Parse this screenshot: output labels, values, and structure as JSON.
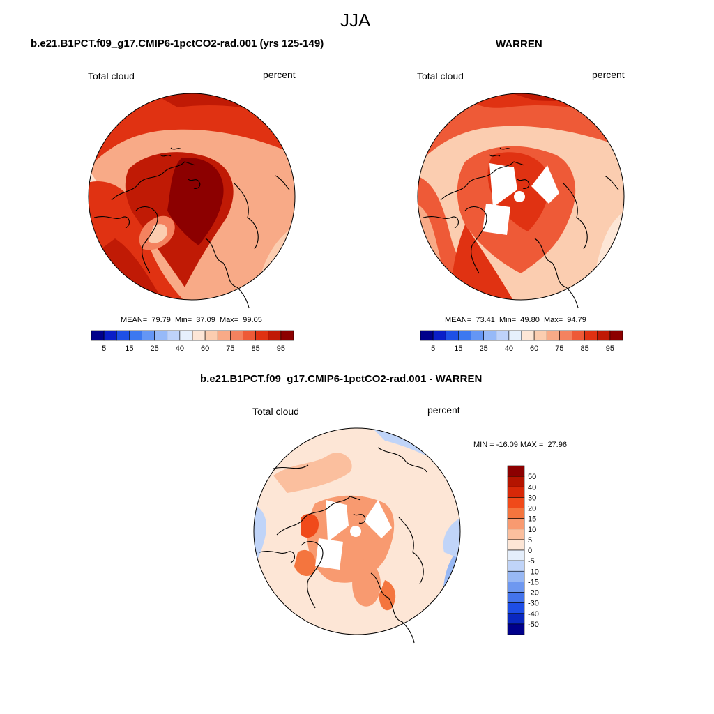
{
  "figure": {
    "title": "JJA"
  },
  "panels": [
    {
      "title": "b.e21.B1PCT.f09_g17.CMIP6-1pctCO2-rad.001 (yrs 125-149)",
      "left_label": "Total cloud",
      "right_label": "percent",
      "stats": {
        "mean": "79.79",
        "min": "37.09",
        "max": "99.05"
      }
    },
    {
      "title": "WARREN",
      "left_label": "Total cloud",
      "right_label": "percent",
      "stats": {
        "mean": "73.41",
        "min": "49.80",
        "max": "94.79"
      }
    },
    {
      "title": "b.e21.B1PCT.f09_g17.CMIP6-1pctCO2-rad.001 - WARREN",
      "left_label": "Total cloud",
      "right_label": "percent",
      "stats": {
        "min": "-16.09",
        "max": "27.96"
      }
    }
  ],
  "stat_labels": {
    "mean": "MEAN=",
    "min": "Min=",
    "max": "Max=",
    "min_diff": "MIN =",
    "max_diff": "MAX ="
  },
  "chart_data": [
    {
      "type": "heatmap",
      "projection": "north-polar-stereographic",
      "variable": "Total cloud",
      "units": "percent",
      "colorbar": {
        "orientation": "horizontal",
        "tick_labels": [
          "5",
          "15",
          "25",
          "40",
          "60",
          "75",
          "85",
          "95"
        ],
        "colors": [
          "#00008b",
          "#0a1ec8",
          "#1e50e6",
          "#3c78f0",
          "#6496f5",
          "#96b9f8",
          "#bed2fa",
          "#e6f0fc",
          "#fde6d6",
          "#fbcdb0",
          "#f8aa87",
          "#f4825f",
          "#ee5a37",
          "#e03212",
          "#c01a05",
          "#8c0000"
        ]
      }
    },
    {
      "type": "heatmap",
      "projection": "north-polar-stereographic",
      "variable": "Total cloud",
      "units": "percent",
      "colorbar": {
        "orientation": "horizontal",
        "tick_labels": [
          "5",
          "15",
          "25",
          "40",
          "60",
          "75",
          "85",
          "95"
        ],
        "colors": [
          "#00008b",
          "#0a1ec8",
          "#1e50e6",
          "#3c78f0",
          "#6496f5",
          "#96b9f8",
          "#bed2fa",
          "#e6f0fc",
          "#fde6d6",
          "#fbcdb0",
          "#f8aa87",
          "#f4825f",
          "#ee5a37",
          "#e03212",
          "#c01a05",
          "#8c0000"
        ]
      }
    },
    {
      "type": "heatmap",
      "projection": "north-polar-stereographic",
      "variable": "Total cloud difference",
      "units": "percent",
      "colorbar": {
        "orientation": "vertical",
        "tick_labels": [
          "50",
          "40",
          "30",
          "20",
          "15",
          "10",
          "5",
          "0",
          "-5",
          "-10",
          "-15",
          "-20",
          "-30",
          "-40",
          "-50"
        ],
        "colors": [
          "#8c0000",
          "#b41400",
          "#d72808",
          "#f04a1a",
          "#f4753e",
          "#f89a70",
          "#fbbf9e",
          "#fde6d6",
          "#e4eefb",
          "#c0d4f8",
          "#98b8f4",
          "#6e98f0",
          "#4474ec",
          "#1e4ee6",
          "#0a28c0",
          "#00008b"
        ]
      }
    }
  ]
}
